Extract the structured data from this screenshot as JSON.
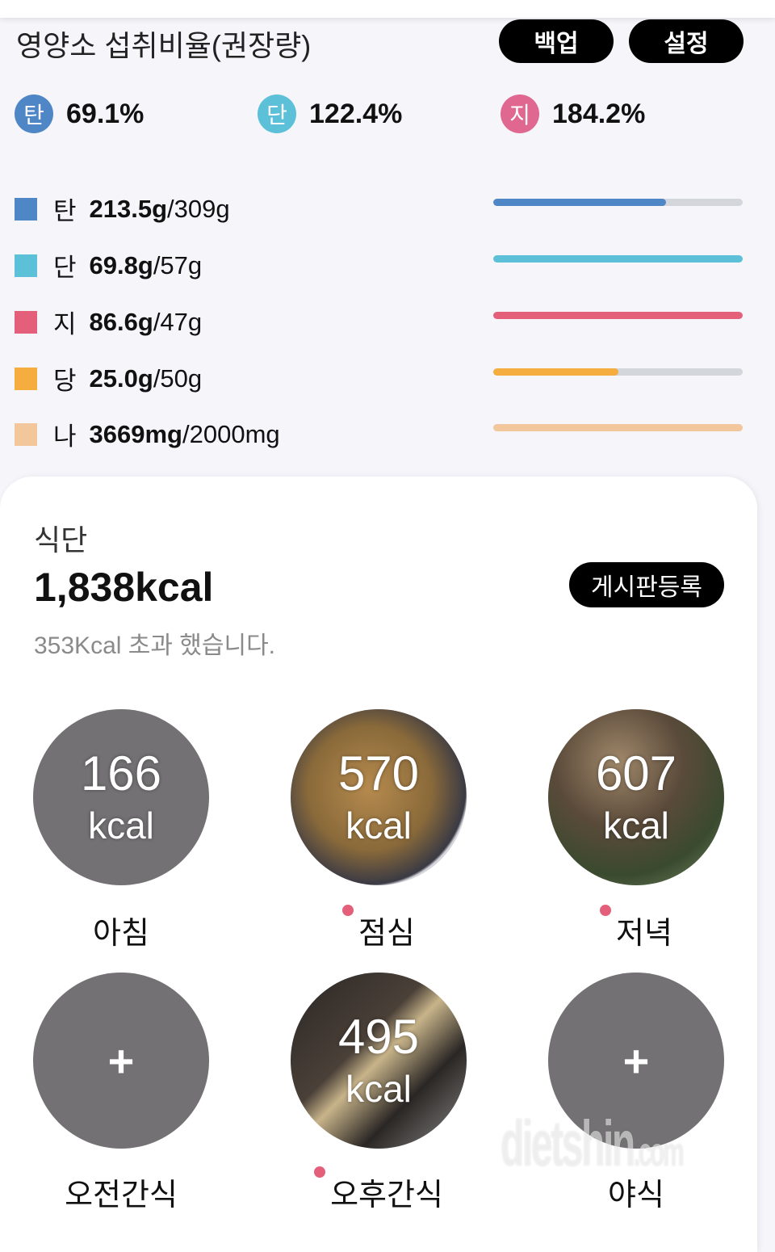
{
  "header": {
    "title": "영양소 섭취비율(권장량)",
    "backup_label": "백업",
    "settings_label": "설정"
  },
  "ratios": [
    {
      "badge": "탄",
      "value": "69.1%",
      "color": "#4f86c6"
    },
    {
      "badge": "단",
      "value": "122.4%",
      "color": "#5bc0d8"
    },
    {
      "badge": "지",
      "value": "184.2%",
      "color": "#e0678f"
    }
  ],
  "nutrients": [
    {
      "key": "탄",
      "amount": "213.5g",
      "target": "/309g",
      "color": "#4f86c6",
      "fraction": 0.691
    },
    {
      "key": "단",
      "amount": "69.8g",
      "target": "/57g",
      "color": "#5bc0d8",
      "fraction": 1
    },
    {
      "key": "지",
      "amount": "86.6g",
      "target": "/47g",
      "color": "#e4607a",
      "fraction": 1
    },
    {
      "key": "당",
      "amount": "25.0g",
      "target": "/50g",
      "color": "#f5ad3f",
      "fraction": 0.5
    },
    {
      "key": "나",
      "amount": "3669mg",
      "target": "/2000mg",
      "color": "#f2c79c",
      "fraction": 1
    }
  ],
  "diet": {
    "section": "식단",
    "total": "1,838kcal",
    "over_text": "353Kcal 초과 했습니다.",
    "board_label": "게시판등록"
  },
  "meals": [
    {
      "label": "아침",
      "kcal": "166",
      "unit": "kcal",
      "photo": false,
      "dot": false
    },
    {
      "label": "점심",
      "kcal": "570",
      "unit": "kcal",
      "photo": true,
      "dot": true
    },
    {
      "label": "저녁",
      "kcal": "607",
      "unit": "kcal",
      "photo": true,
      "dot": true
    },
    {
      "label": "오전간식",
      "kcal": "",
      "unit": "",
      "photo": false,
      "dot": false,
      "add": "+"
    },
    {
      "label": "오후간식",
      "kcal": "495",
      "unit": "kcal",
      "photo": true,
      "dot": true
    },
    {
      "label": "야식",
      "kcal": "",
      "unit": "",
      "photo": false,
      "dot": false,
      "add": "+"
    }
  ],
  "watermark": "dietshin.com"
}
